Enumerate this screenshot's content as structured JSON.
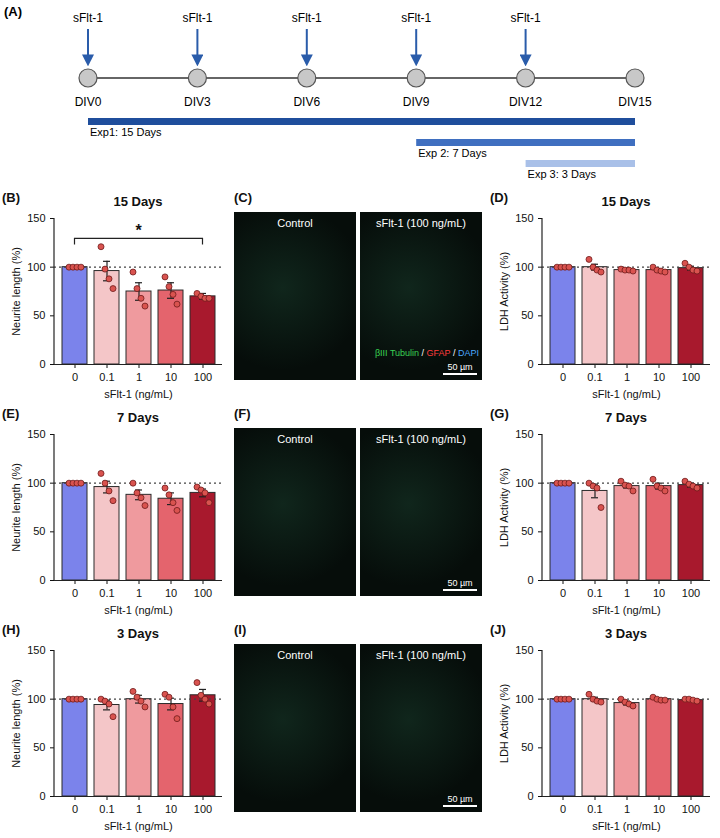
{
  "timeline": {
    "panel": "(A)",
    "days": [
      0,
      3,
      6,
      9,
      12,
      15
    ],
    "day_labels": [
      "DIV0",
      "DIV3",
      "DIV6",
      "DIV9",
      "DIV12",
      "DIV15"
    ],
    "treatment_label": "sFlt-1",
    "treatment_days": [
      0,
      3,
      6,
      9,
      12
    ],
    "experiments": [
      {
        "label": "Exp1: 15 Days",
        "start": 0,
        "end": 15,
        "color": "#1f4e9c"
      },
      {
        "label": "Exp 2: 7 Days",
        "start": 9,
        "end": 15,
        "color": "#3f6fc0"
      },
      {
        "label": "Exp 3: 3 Days",
        "start": 12,
        "end": 15,
        "color": "#a9c0e8"
      }
    ]
  },
  "images": [
    {
      "panel": "(C)",
      "left_label": "Control",
      "right_label": "sFlt-1 (100 ng/mL)",
      "scale_bar": "50 µm",
      "stain_legend": [
        {
          "text": "βIII Tubulin",
          "color": "#39d353"
        },
        {
          "text": " / ",
          "color": "#ffffff"
        },
        {
          "text": "GFAP",
          "color": "#ff3b3b"
        },
        {
          "text": " / ",
          "color": "#ffffff"
        },
        {
          "text": "DAPI",
          "color": "#4aa8ff"
        }
      ]
    },
    {
      "panel": "(F)",
      "left_label": "Control",
      "right_label": "sFlt-1 (100 ng/mL)",
      "scale_bar": "50 µm"
    },
    {
      "panel": "(I)",
      "left_label": "Control",
      "right_label": "sFlt-1 (100 ng/mL)",
      "scale_bar": "50 µm"
    }
  ],
  "chart_data": [
    {
      "panel": "(B)",
      "type": "bar",
      "title": "15 Days",
      "xlabel": "sFlt-1 (ng/mL)",
      "ylabel": "Neurite length (%)",
      "categories": [
        "0",
        "0.1",
        "1",
        "10",
        "100"
      ],
      "values": [
        100,
        96,
        75,
        76,
        70
      ],
      "errors": [
        0,
        10,
        9,
        8,
        3
      ],
      "points": [
        [
          100,
          100,
          100,
          100
        ],
        [
          121,
          98,
          88,
          78
        ],
        [
          95,
          78,
          68,
          60
        ],
        [
          90,
          80,
          72,
          62
        ],
        [
          73,
          70,
          68,
          68
        ]
      ],
      "colors": [
        "#7b83eb",
        "#f4c6c8",
        "#ef9a9e",
        "#e4646d",
        "#a8192d"
      ],
      "ylim": [
        0,
        150
      ],
      "yticks": [
        0,
        50,
        100,
        150
      ],
      "reference_line": 100,
      "significance": [
        {
          "from": "0",
          "to": "100",
          "label": "*"
        }
      ]
    },
    {
      "panel": "(D)",
      "type": "bar",
      "title": "15 Days",
      "xlabel": "sFlt-1 (ng/mL)",
      "ylabel": "LDH Activity (%)",
      "categories": [
        "0",
        "0.1",
        "1",
        "10",
        "100"
      ],
      "values": [
        100,
        100,
        97,
        97,
        99
      ],
      "errors": [
        0,
        3,
        1,
        1,
        2
      ],
      "points": [
        [
          100,
          100,
          100,
          100
        ],
        [
          108,
          100,
          97,
          95
        ],
        [
          98,
          97,
          97,
          96
        ],
        [
          100,
          97,
          96,
          95
        ],
        [
          104,
          100,
          97,
          96
        ]
      ],
      "colors": [
        "#7b83eb",
        "#f4c6c8",
        "#ef9a9e",
        "#e4646d",
        "#a8192d"
      ],
      "ylim": [
        0,
        150
      ],
      "yticks": [
        0,
        50,
        100,
        150
      ],
      "reference_line": 100
    },
    {
      "panel": "(E)",
      "type": "bar",
      "title": "7 Days",
      "xlabel": "sFlt-1 (ng/mL)",
      "ylabel": "Neurite length (%)",
      "categories": [
        "0",
        "0.1",
        "1",
        "10",
        "100"
      ],
      "values": [
        100,
        96,
        88,
        84,
        90
      ],
      "errors": [
        0,
        6,
        5,
        6,
        4
      ],
      "points": [
        [
          100,
          100,
          100,
          100
        ],
        [
          110,
          100,
          92,
          82
        ],
        [
          100,
          90,
          85,
          77
        ],
        [
          95,
          88,
          80,
          72
        ],
        [
          96,
          93,
          90,
          80
        ]
      ],
      "colors": [
        "#7b83eb",
        "#f4c6c8",
        "#ef9a9e",
        "#e4646d",
        "#a8192d"
      ],
      "ylim": [
        0,
        150
      ],
      "yticks": [
        0,
        50,
        100,
        150
      ],
      "reference_line": 100
    },
    {
      "panel": "(G)",
      "type": "bar",
      "title": "7 Days",
      "xlabel": "sFlt-1 (ng/mL)",
      "ylabel": "LDH Activity (%)",
      "categories": [
        "0",
        "0.1",
        "1",
        "10",
        "100"
      ],
      "values": [
        100,
        92,
        97,
        97,
        98
      ],
      "errors": [
        0,
        7,
        2,
        3,
        2
      ],
      "points": [
        [
          100,
          100,
          100,
          100
        ],
        [
          100,
          97,
          95,
          75
        ],
        [
          102,
          98,
          97,
          92
        ],
        [
          104,
          97,
          95,
          92
        ],
        [
          102,
          99,
          97,
          95
        ]
      ],
      "colors": [
        "#7b83eb",
        "#f4c6c8",
        "#ef9a9e",
        "#e4646d",
        "#a8192d"
      ],
      "ylim": [
        0,
        150
      ],
      "yticks": [
        0,
        50,
        100,
        150
      ],
      "reference_line": 100
    },
    {
      "panel": "(H)",
      "type": "bar",
      "title": "3 Days",
      "xlabel": "sFlt-1 (ng/mL)",
      "ylabel": "Neurite length (%)",
      "categories": [
        "0",
        "0.1",
        "1",
        "10",
        "100"
      ],
      "values": [
        100,
        94,
        100,
        95,
        104
      ],
      "errors": [
        0,
        5,
        4,
        6,
        6
      ],
      "points": [
        [
          100,
          100,
          100,
          100
        ],
        [
          100,
          98,
          95,
          82
        ],
        [
          108,
          102,
          98,
          92
        ],
        [
          105,
          102,
          92,
          80
        ],
        [
          117,
          104,
          100,
          95
        ]
      ],
      "colors": [
        "#7b83eb",
        "#f4c6c8",
        "#ef9a9e",
        "#e4646d",
        "#a8192d"
      ],
      "ylim": [
        0,
        150
      ],
      "yticks": [
        0,
        50,
        100,
        150
      ],
      "reference_line": 100
    },
    {
      "panel": "(J)",
      "type": "bar",
      "title": "3 Days",
      "xlabel": "sFlt-1 (ng/mL)",
      "ylabel": "LDH Activity (%)",
      "categories": [
        "0",
        "0.1",
        "1",
        "10",
        "100"
      ],
      "values": [
        100,
        100,
        96,
        100,
        99
      ],
      "errors": [
        0,
        2,
        2,
        1,
        1
      ],
      "points": [
        [
          100,
          100,
          100,
          100
        ],
        [
          105,
          100,
          98,
          97
        ],
        [
          100,
          97,
          95,
          93
        ],
        [
          102,
          100,
          99,
          99
        ],
        [
          100,
          100,
          99,
          98
        ]
      ],
      "colors": [
        "#7b83eb",
        "#f4c6c8",
        "#ef9a9e",
        "#e4646d",
        "#a8192d"
      ],
      "ylim": [
        0,
        150
      ],
      "yticks": [
        0,
        50,
        100,
        150
      ],
      "reference_line": 100
    }
  ]
}
